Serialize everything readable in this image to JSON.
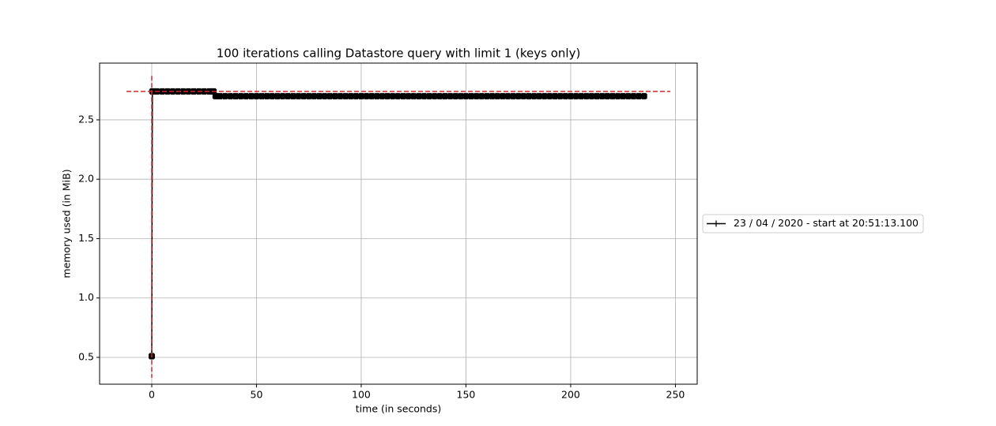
{
  "chart_data": {
    "type": "line",
    "title": "100 iterations calling Datastore query with limit 1 (keys only)",
    "x_label": "time (in seconds)",
    "y_label": "memory used (in MiB)",
    "xlim": [
      -24.9,
      260.4
    ],
    "ylim": [
      0.274,
      2.978
    ],
    "xticks": [
      0,
      50,
      100,
      150,
      200,
      250
    ],
    "yticks": [
      0.5,
      {
        "value": 1.0,
        "label": "1.0"
      },
      1.5,
      {
        "value": 2.0,
        "label": "2.0"
      },
      2.5
    ],
    "grid": true,
    "legend": "outside-right",
    "max_marker": {
      "x": 0,
      "y": 2.74,
      "color": "#d62728"
    },
    "series": [
      {
        "name": "23 / 04 / 2020 - start at 20:51:13.100",
        "color": "#000000",
        "x": [
          0,
          0.3,
          2.5,
          5,
          7.5,
          10,
          12.5,
          15,
          17.5,
          20,
          22.5,
          25,
          27.5,
          29.5,
          30.5,
          32.5,
          35,
          37.5,
          40,
          42.5,
          45,
          47.5,
          50,
          52.5,
          55,
          57.5,
          60,
          62.5,
          65,
          67.5,
          70,
          72.5,
          75,
          77.5,
          80,
          82.5,
          85,
          87.5,
          90,
          92.5,
          95,
          97.5,
          100,
          102.5,
          105,
          107.5,
          110,
          112.5,
          115,
          117.5,
          120,
          122.5,
          125,
          127.5,
          130,
          132.5,
          135,
          137.5,
          140,
          142.5,
          145,
          147.5,
          150,
          152.5,
          155,
          157.5,
          160,
          162.5,
          165,
          167.5,
          170,
          172.5,
          175,
          177.5,
          180,
          182.5,
          185,
          187.5,
          190,
          192.5,
          195,
          197.5,
          200,
          202.5,
          205,
          207.5,
          210,
          212.5,
          215,
          217.5,
          220,
          222.5,
          225,
          227.5,
          230,
          232.5,
          235
        ],
        "values": [
          0.51,
          2.74,
          2.74,
          2.74,
          2.74,
          2.74,
          2.74,
          2.74,
          2.74,
          2.74,
          2.74,
          2.74,
          2.74,
          2.74,
          2.7,
          2.7,
          2.7,
          2.7,
          2.7,
          2.7,
          2.7,
          2.7,
          2.7,
          2.7,
          2.7,
          2.7,
          2.7,
          2.7,
          2.7,
          2.7,
          2.7,
          2.7,
          2.7,
          2.7,
          2.7,
          2.7,
          2.7,
          2.7,
          2.7,
          2.7,
          2.7,
          2.7,
          2.7,
          2.7,
          2.7,
          2.7,
          2.7,
          2.7,
          2.7,
          2.7,
          2.7,
          2.7,
          2.7,
          2.7,
          2.7,
          2.7,
          2.7,
          2.7,
          2.7,
          2.7,
          2.7,
          2.7,
          2.7,
          2.7,
          2.7,
          2.7,
          2.7,
          2.7,
          2.7,
          2.7,
          2.7,
          2.7,
          2.7,
          2.7,
          2.7,
          2.7,
          2.7,
          2.7,
          2.7,
          2.7,
          2.7,
          2.7,
          2.7,
          2.7,
          2.7,
          2.7,
          2.7,
          2.7,
          2.7,
          2.7,
          2.7,
          2.7,
          2.7,
          2.7,
          2.7,
          2.7,
          2.7
        ]
      }
    ]
  }
}
